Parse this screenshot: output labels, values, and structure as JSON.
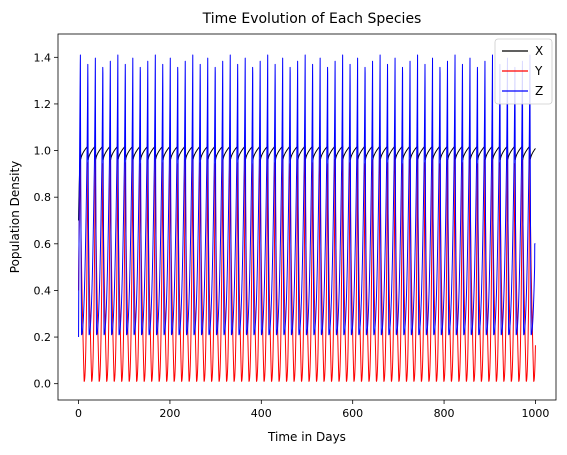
{
  "chart_data": {
    "type": "line",
    "title": "Time Evolution of Each Species",
    "xlabel": "Time in Days",
    "ylabel": "Population Density",
    "xlim": [
      -45,
      1045
    ],
    "ylim": [
      -0.07,
      1.5
    ],
    "xticks": [
      0,
      200,
      400,
      600,
      800,
      1000
    ],
    "yticks": [
      0.0,
      0.2,
      0.4,
      0.6,
      0.8,
      1.0,
      1.2,
      1.4
    ],
    "grid": false,
    "legend_position": "top-right",
    "t_end": 1000,
    "period_days": 16.4,
    "series": [
      {
        "name": "X",
        "color": "#000000",
        "initial": 0.7,
        "min": 0.96,
        "max": 1.02,
        "first_peak": 1.03
      },
      {
        "name": "Y",
        "color": "#ff0000",
        "initial": 0.4,
        "min": 0.01,
        "max": 0.99,
        "first_peak": 1.03
      },
      {
        "name": "Z",
        "color": "#0000ff",
        "initial": 0.2,
        "min": 0.21,
        "max": 1.41,
        "first_peak": 1.43,
        "final": 0.6
      }
    ]
  }
}
